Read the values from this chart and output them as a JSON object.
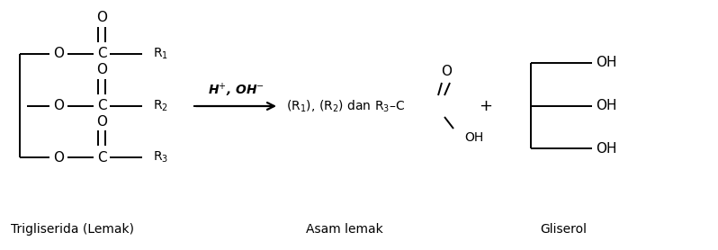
{
  "bg_color": "#ffffff",
  "text_color": "#000000",
  "line_color": "#000000",
  "line_width": 1.4,
  "fig_width": 7.98,
  "fig_height": 2.78,
  "dpi": 100,
  "label_trigliserida": "Trigliserida (Lemak)",
  "label_asam": "Asam lemak",
  "label_gliserol": "Gliserol",
  "arrow_label": "H$^{+}$, OH$^{-}$",
  "plus_sign": "+"
}
